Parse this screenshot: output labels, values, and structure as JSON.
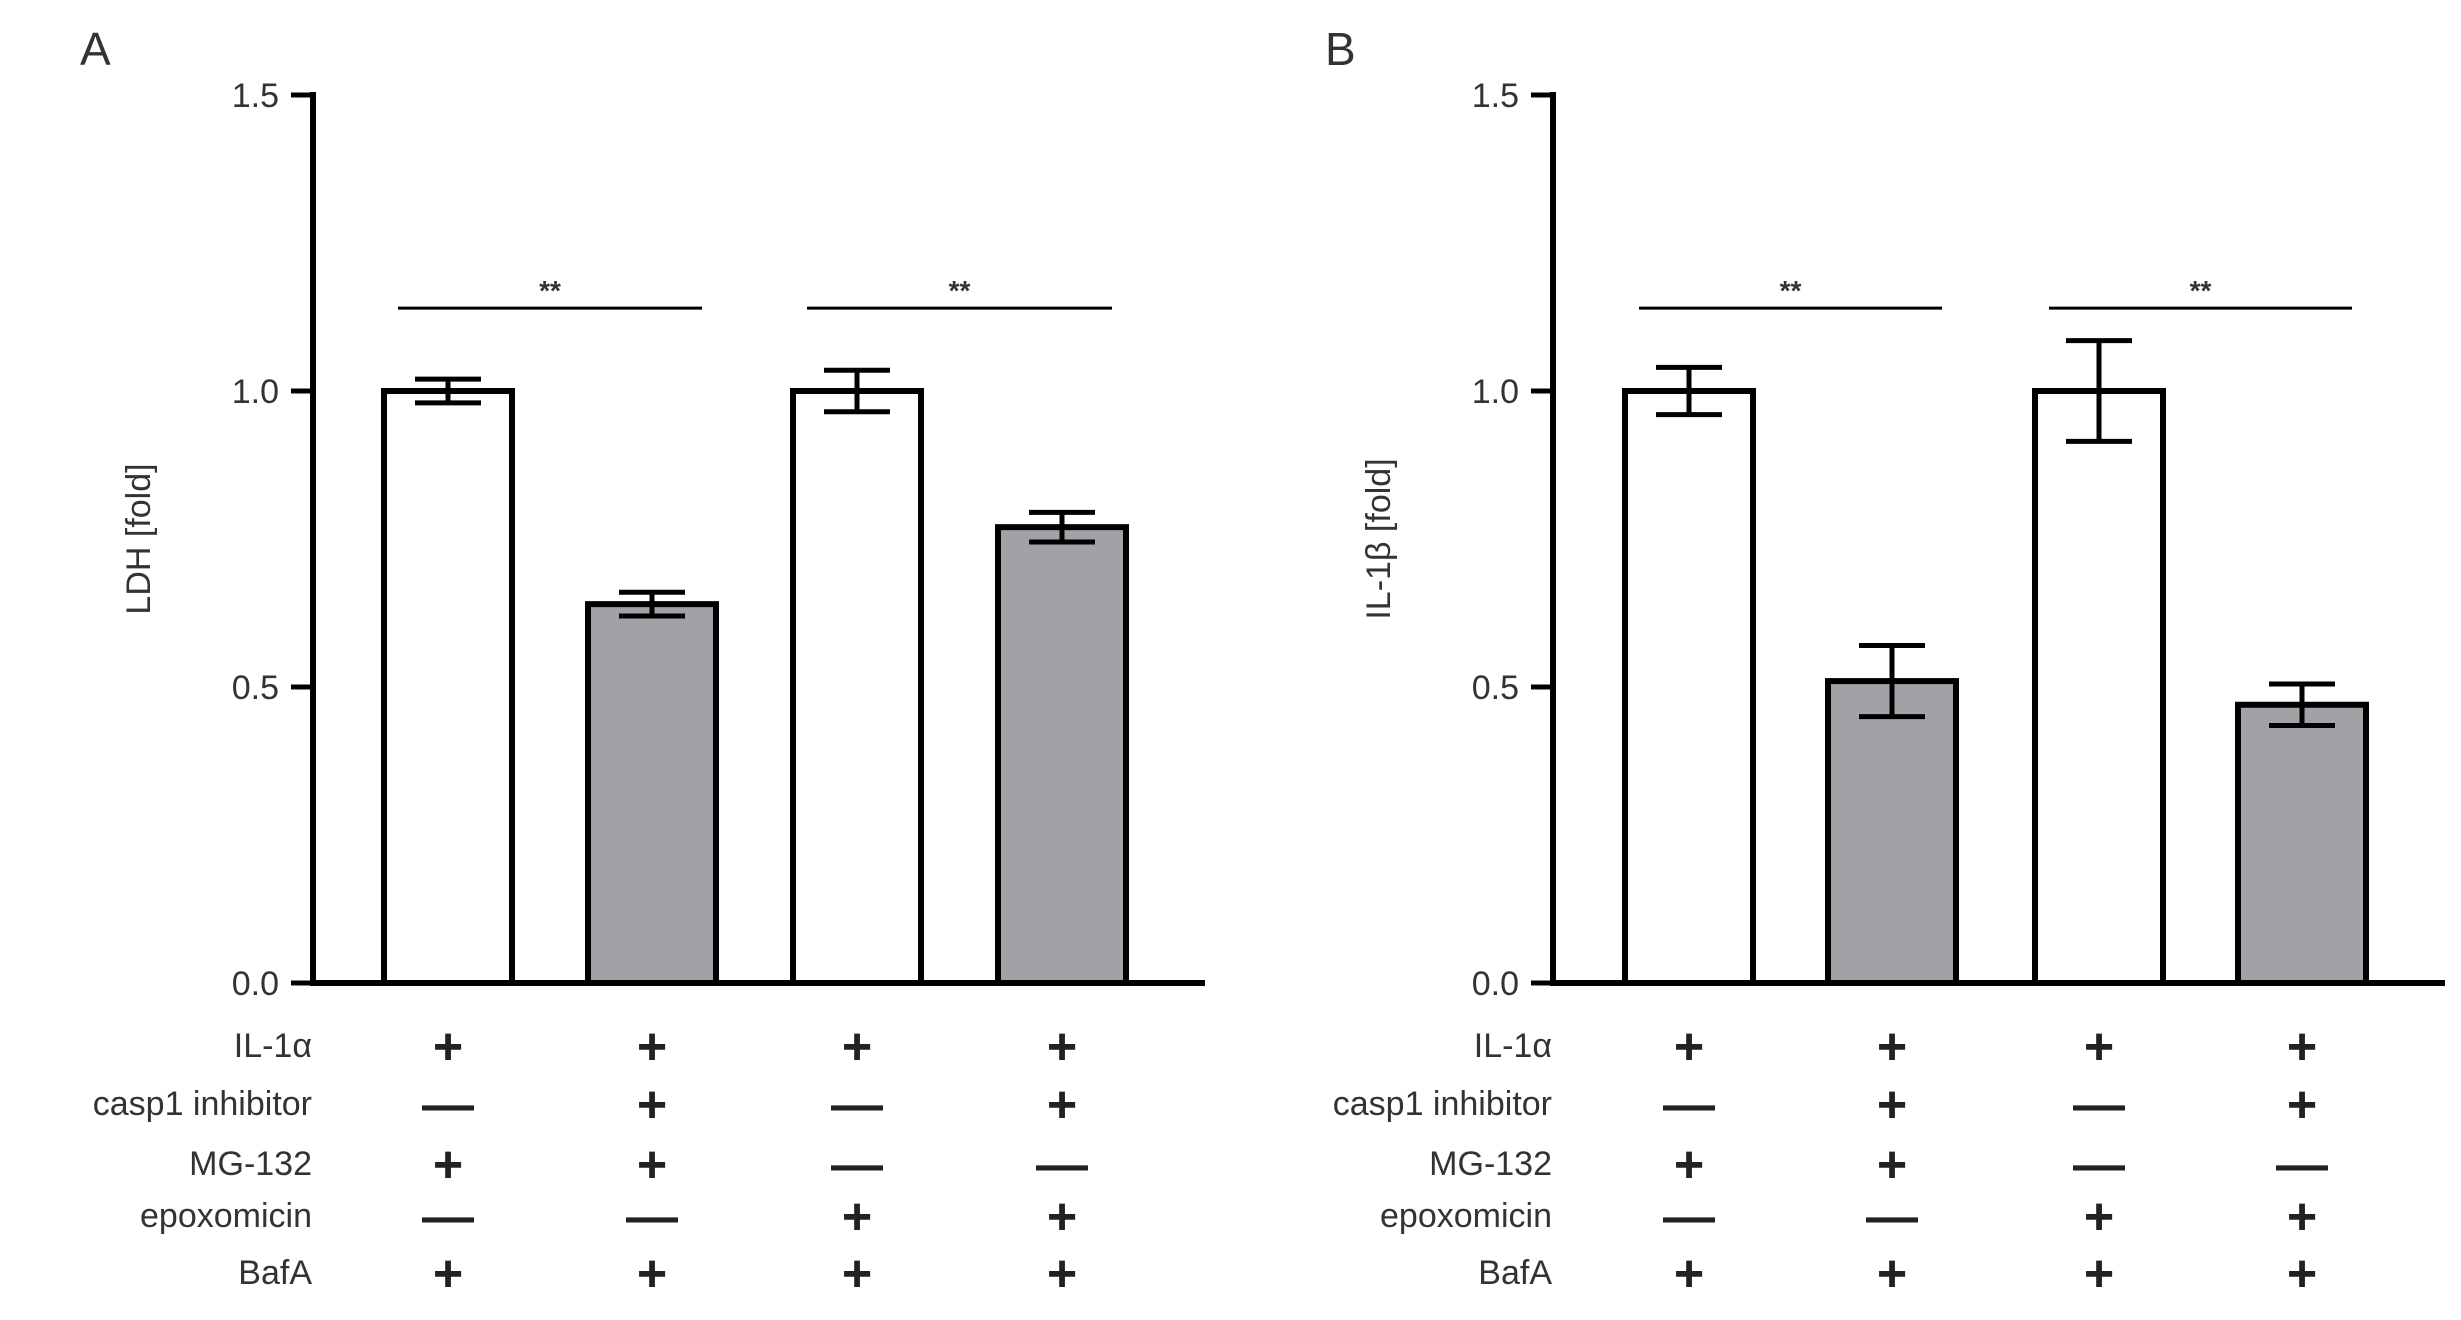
{
  "chart_data": [
    {
      "panel": "A",
      "type": "bar",
      "ylabel": "LDH [fold]",
      "ylim": [
        0,
        1.5
      ],
      "yticks": [
        "0.0",
        "0.5",
        "1.0",
        "1.5"
      ],
      "bars": [
        {
          "value": 1.0,
          "err": 0.02,
          "fill": "#ffffff"
        },
        {
          "value": 0.64,
          "err": 0.02,
          "fill": "#a2a1a6"
        },
        {
          "value": 1.0,
          "err": 0.035,
          "fill": "#ffffff"
        },
        {
          "value": 0.77,
          "err": 0.025,
          "fill": "#a2a1a6"
        }
      ],
      "significance": [
        {
          "from": 0,
          "to": 1,
          "label": "**",
          "y": 1.14
        },
        {
          "from": 2,
          "to": 3,
          "label": "**",
          "y": 1.14
        }
      ],
      "conditions": [
        {
          "label": "IL-1α",
          "values": [
            "+",
            "+",
            "+",
            "+"
          ]
        },
        {
          "label": "casp1 inhibitor",
          "values": [
            "—",
            "+",
            "—",
            "+"
          ]
        },
        {
          "label": "MG-132",
          "values": [
            "+",
            "+",
            "—",
            "—"
          ]
        },
        {
          "label": "epoxomicin",
          "values": [
            "—",
            "—",
            "+",
            "+"
          ]
        },
        {
          "label": "BafA",
          "values": [
            "+",
            "+",
            "+",
            "+"
          ]
        }
      ]
    },
    {
      "panel": "B",
      "type": "bar",
      "ylabel": "IL-1β [fold]",
      "ylim": [
        0,
        1.5
      ],
      "yticks": [
        "0.0",
        "0.5",
        "1.0",
        "1.5"
      ],
      "bars": [
        {
          "value": 1.0,
          "err": 0.04,
          "fill": "#ffffff"
        },
        {
          "value": 0.51,
          "err": 0.06,
          "fill": "#a2a1a6"
        },
        {
          "value": 1.0,
          "err": 0.085,
          "fill": "#ffffff"
        },
        {
          "value": 0.47,
          "err": 0.035,
          "fill": "#a2a1a6"
        }
      ],
      "significance": [
        {
          "from": 0,
          "to": 1,
          "label": "**",
          "y": 1.14
        },
        {
          "from": 2,
          "to": 3,
          "label": "**",
          "y": 1.14
        }
      ],
      "conditions": [
        {
          "label": "IL-1α",
          "values": [
            "+",
            "+",
            "+",
            "+"
          ]
        },
        {
          "label": "casp1 inhibitor",
          "values": [
            "—",
            "+",
            "—",
            "+"
          ]
        },
        {
          "label": "MG-132",
          "values": [
            "+",
            "+",
            "—",
            "—"
          ]
        },
        {
          "label": "epoxomicin",
          "values": [
            "—",
            "—",
            "+",
            "+"
          ]
        },
        {
          "label": "BafA",
          "values": [
            "+",
            "+",
            "+",
            "+"
          ]
        }
      ]
    }
  ]
}
